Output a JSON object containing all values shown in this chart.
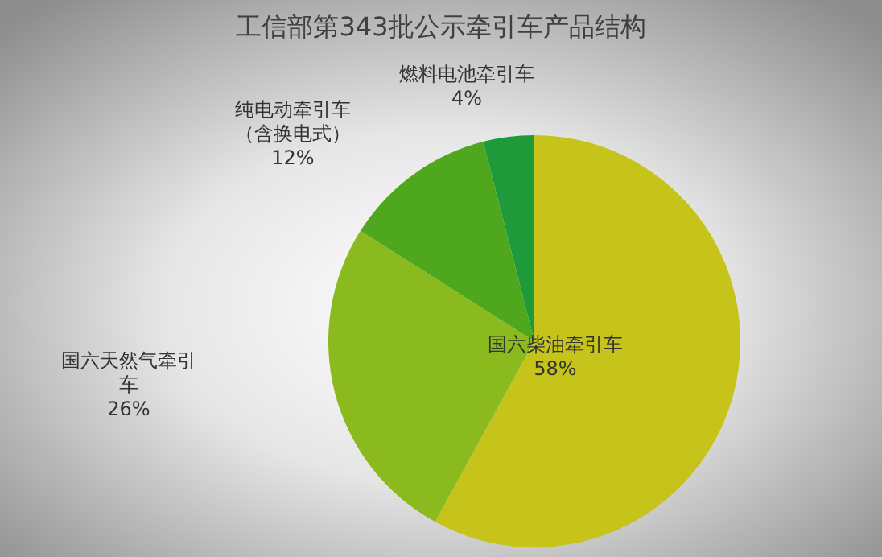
{
  "chart_data": {
    "type": "pie",
    "title": "工信部第343批公示牵引车产品结构",
    "categories": [
      "国六柴油牵引车",
      "国六天然气牵引车",
      "纯电动牵引车（含换电式）",
      "燃料电池牵引车"
    ],
    "values": [
      58,
      26,
      12,
      4
    ],
    "value_labels": [
      "58%",
      "26%",
      "12%",
      "4%"
    ],
    "colors": [
      "#c6c41a",
      "#8bba1f",
      "#4ea71c",
      "#1f9a3a"
    ]
  }
}
